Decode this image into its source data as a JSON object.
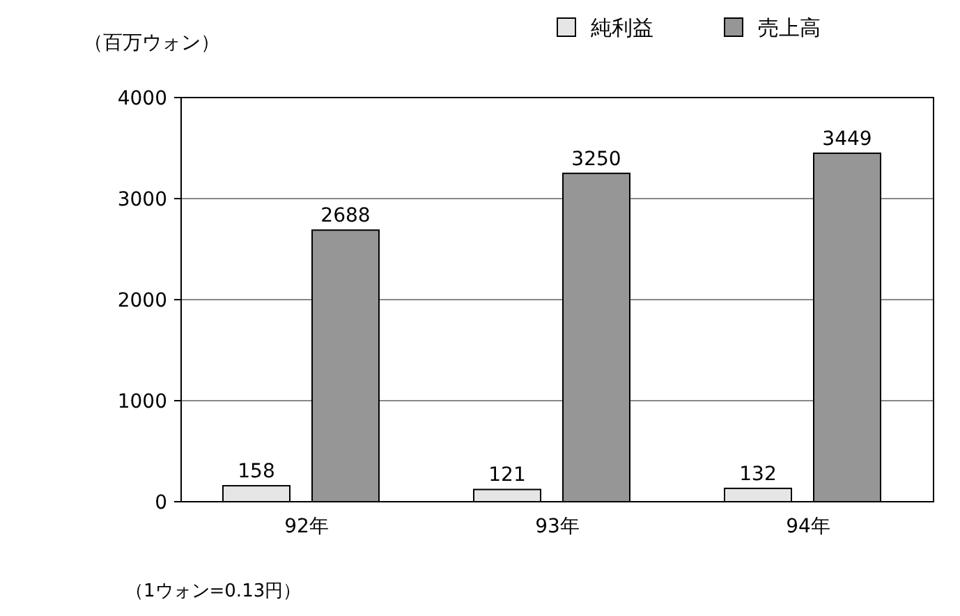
{
  "chart_data": {
    "type": "bar",
    "ylabel": "（百万ウォン）",
    "categories": [
      "92年",
      "93年",
      "94年"
    ],
    "series": [
      {
        "name": "純利益",
        "color": "#e6e6e6",
        "values": [
          158,
          121,
          132
        ]
      },
      {
        "name": "売上高",
        "color": "#969696",
        "values": [
          2688,
          3250,
          3449
        ]
      }
    ],
    "ylim": [
      0,
      4000
    ],
    "yticks": [
      0,
      1000,
      2000,
      3000,
      4000
    ],
    "grid": "y",
    "legend": "top right",
    "data_labels": true,
    "annotations": [
      "（1ウォン=0.13円）"
    ]
  }
}
